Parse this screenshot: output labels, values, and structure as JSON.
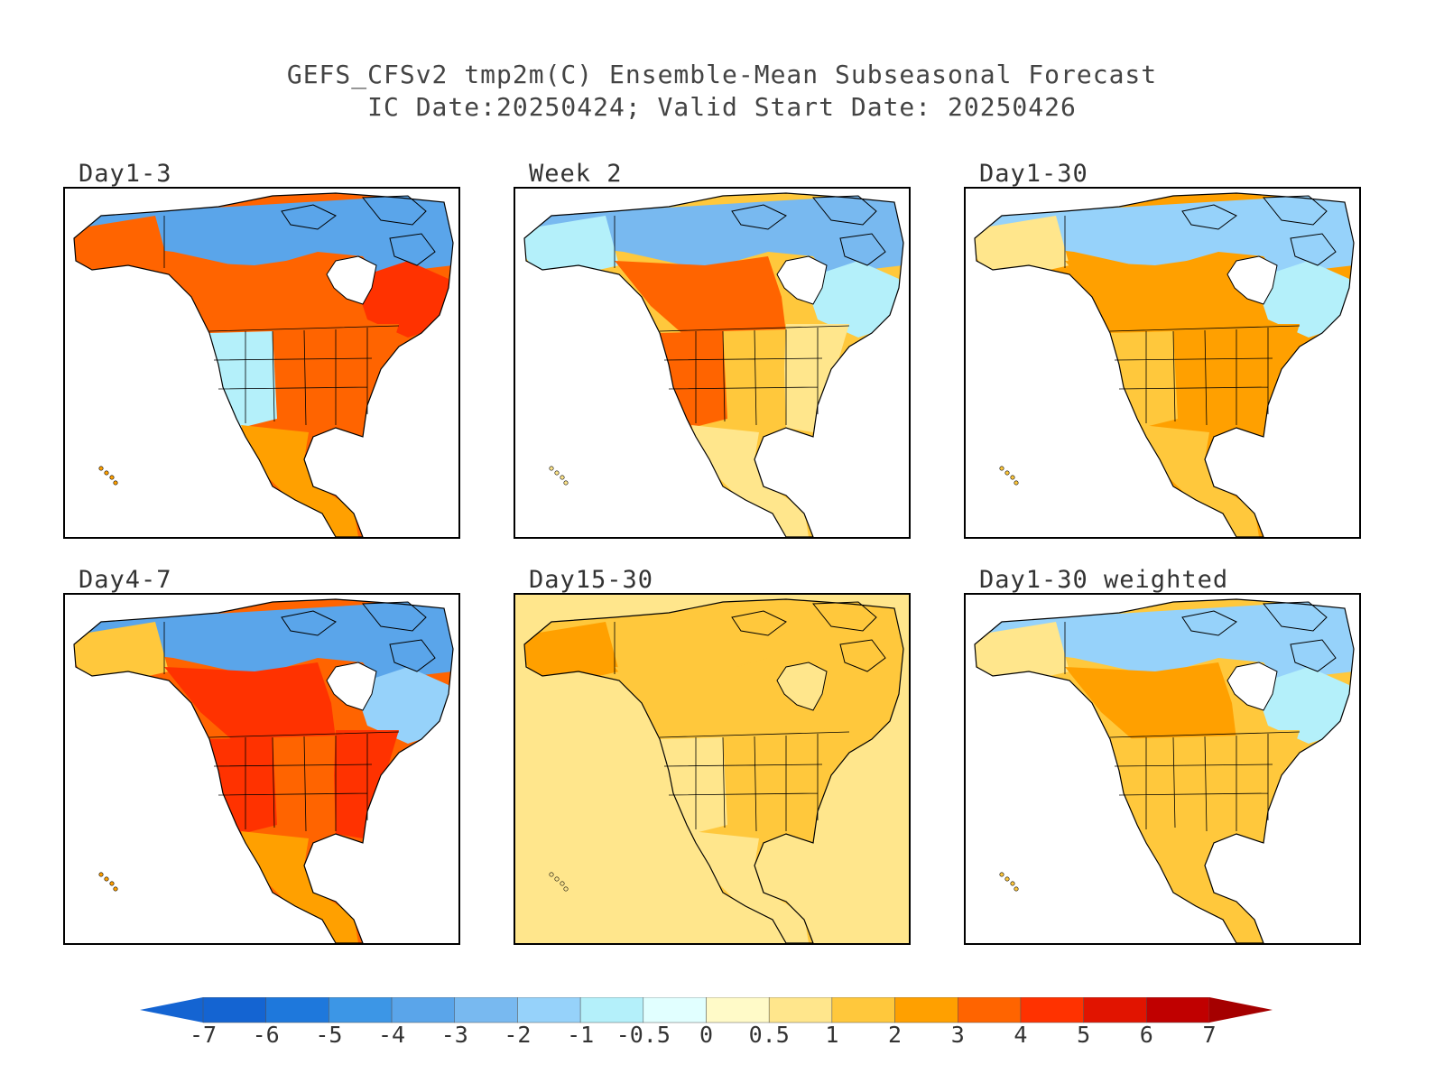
{
  "figure": {
    "title_line1": "GEFS_CFSv2 tmp2m(C) Ensemble-Mean Subseasonal Forecast",
    "title_line2": "IC Date:20250424; Valid Start Date: 20250426"
  },
  "panels": [
    {
      "label": "Day1-3",
      "tint": {
        "north": -4,
        "alaska": 3,
        "west_us": -1,
        "central_us": 3.5,
        "east_us": 3,
        "canada_south": 3,
        "quebec": 4,
        "mexico": 2
      }
    },
    {
      "label": "Week 2",
      "tint": {
        "north": -3,
        "alaska": -1,
        "west_us": 3,
        "central_us": 1,
        "east_us": 0.5,
        "canada_south": 3.5,
        "quebec": -1,
        "mexico": 0.5
      }
    },
    {
      "label": "Day1-30",
      "tint": {
        "north": -2,
        "alaska": 0.5,
        "west_us": 1,
        "central_us": 2,
        "east_us": 2,
        "canada_south": 2,
        "quebec": -1,
        "mexico": 1
      }
    },
    {
      "label": "Day4-7",
      "tint": {
        "north": -4,
        "alaska": 1,
        "west_us": 4,
        "central_us": 3,
        "east_us": 4,
        "canada_south": 4.5,
        "quebec": -2,
        "mexico": 2
      }
    },
    {
      "label": "Day15-30",
      "tint": {
        "north": 1,
        "alaska": 2,
        "west_us": 0.5,
        "central_us": 1.5,
        "east_us": 1,
        "canada_south": 1.5,
        "quebec": 1,
        "mexico": 0.5,
        "ocean": 0.5
      }
    },
    {
      "label": "Day1-30 weighted",
      "tint": {
        "north": -2,
        "alaska": 0.5,
        "west_us": 1,
        "central_us": 1.5,
        "east_us": 1.5,
        "canada_south": 2,
        "quebec": -1,
        "mexico": 1
      }
    }
  ],
  "colorbar": {
    "tick_labels": [
      "-7",
      "-6",
      "-5",
      "-4",
      "-3",
      "-2",
      "-1",
      "-0.5",
      "0",
      "0.5",
      "1",
      "2",
      "3",
      "4",
      "5",
      "6",
      "7"
    ],
    "colors": [
      "#1464d2",
      "#1e78dc",
      "#3c96e6",
      "#5aa5ea",
      "#78b9f0",
      "#96d2fa",
      "#b4f0fa",
      "#e1ffff",
      "#fffac8",
      "#ffe68c",
      "#ffc83c",
      "#ffa000",
      "#ff6400",
      "#ff3200",
      "#e11400",
      "#c00000"
    ],
    "below_color": "#1464d2",
    "above_color": "#a50000"
  }
}
